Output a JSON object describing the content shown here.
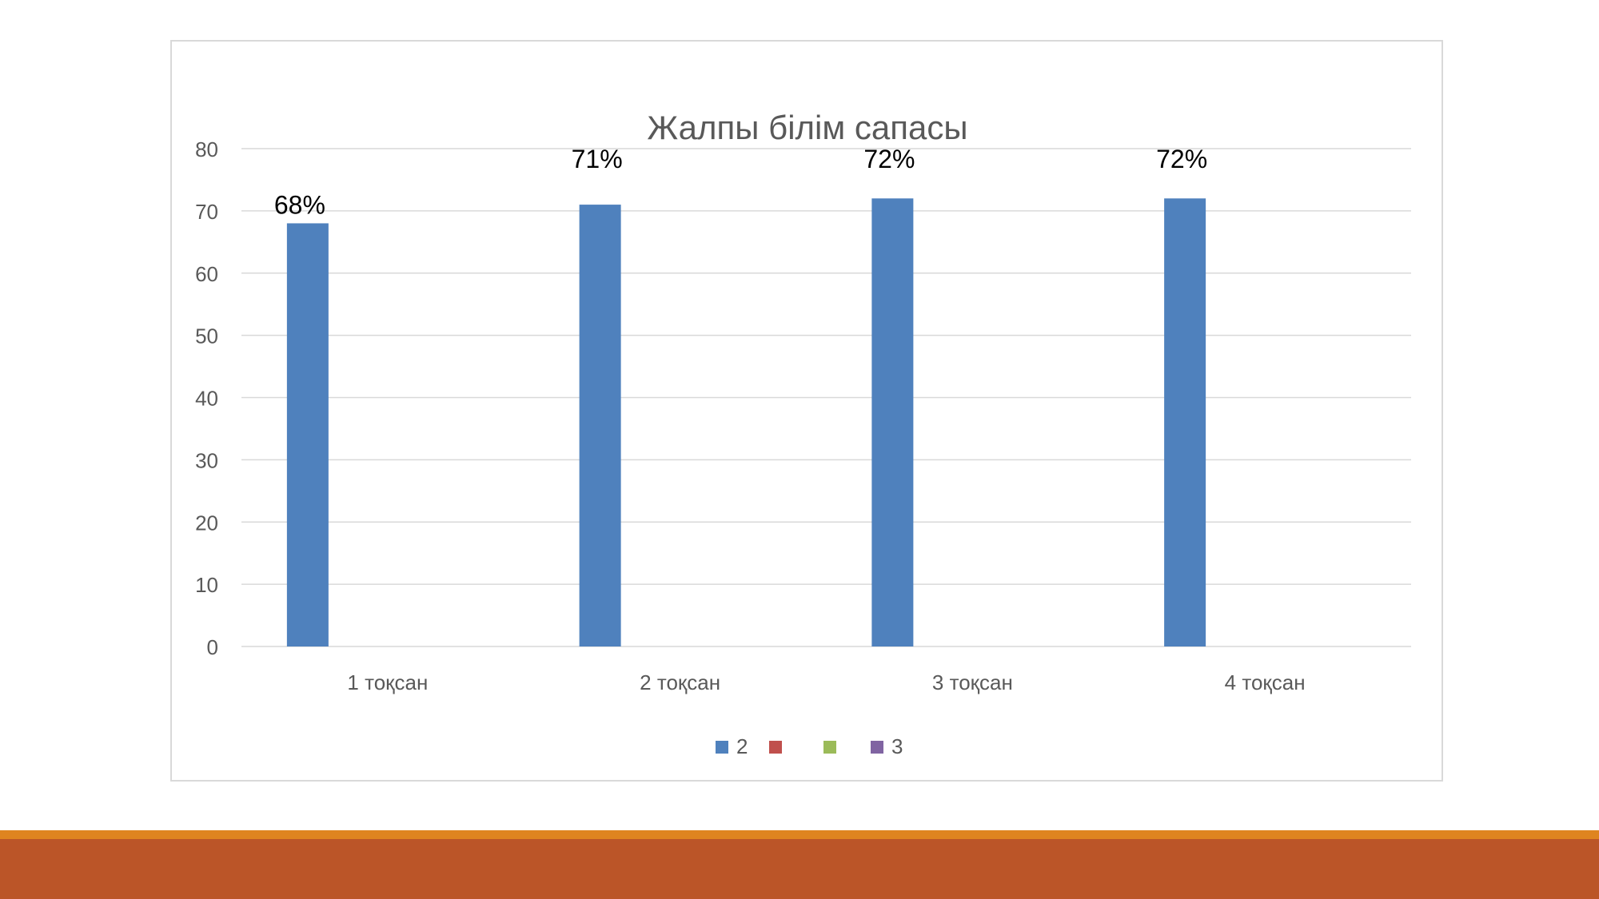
{
  "theme": {
    "bar_color": "#4f81bd",
    "accent_thin": "#df8420",
    "accent_thick": "#bb5528"
  },
  "chart_data": {
    "type": "bar",
    "title": "Жалпы білім сапасы",
    "xlabel": "",
    "ylabel": "",
    "categories": [
      "1 тоқсан",
      "2 тоқсан",
      "3 тоқсан",
      "4 тоқсан"
    ],
    "ylim": [
      0,
      80
    ],
    "yticks": [
      0,
      10,
      20,
      30,
      40,
      50,
      60,
      70,
      80
    ],
    "grid": true,
    "series": [
      {
        "name": "2",
        "color": "#4f81bd",
        "values": [
          68,
          71,
          72,
          72
        ],
        "labels": [
          "68%",
          "71%",
          "72%",
          "72%"
        ]
      },
      {
        "name": "",
        "color": "#c0504d",
        "values": [
          0,
          0,
          0,
          0
        ]
      },
      {
        "name": "",
        "color": "#9bbb59",
        "values": [
          0,
          0,
          0,
          0
        ]
      },
      {
        "name": "3",
        "color": "#8064a2",
        "values": [
          0,
          0,
          0,
          0
        ]
      }
    ],
    "legend_position": "bottom"
  }
}
